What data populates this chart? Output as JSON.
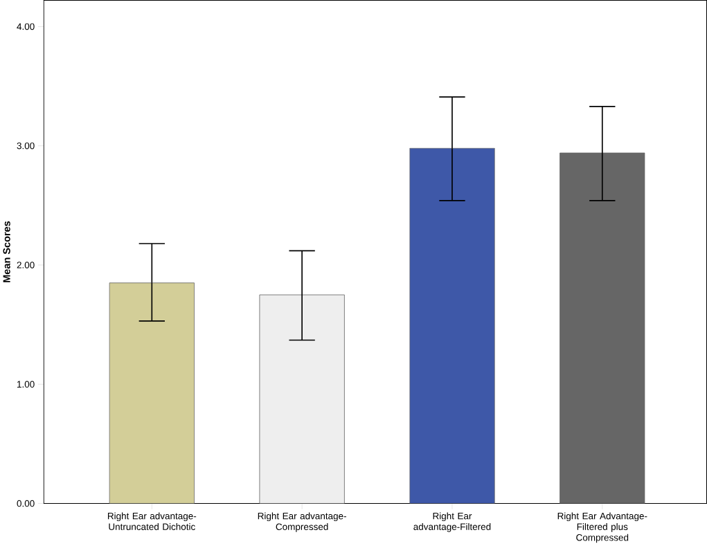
{
  "chart_data": {
    "type": "bar",
    "ylabel": "Mean Scores",
    "categories": [
      "Right Ear advantage-Untruncated Dichotic",
      "Right Ear advantage-Compressed",
      "Right Ear advantage-Filtered",
      "Right Ear Advantage-Filtered plus Compressed"
    ],
    "values": [
      1.85,
      1.75,
      2.98,
      2.94
    ],
    "errors": [
      [
        1.53,
        2.18
      ],
      [
        1.37,
        2.12
      ],
      [
        2.54,
        3.41
      ],
      [
        2.54,
        3.33
      ]
    ],
    "colors": [
      "#d3ce98",
      "#eeeeee",
      "#3e58a8",
      "#666666"
    ],
    "ylim": [
      0,
      4.22
    ],
    "yticks": [
      {
        "value": 0,
        "label": "0.00"
      },
      {
        "value": 1,
        "label": "1.00"
      },
      {
        "value": 2,
        "label": "2.00"
      },
      {
        "value": 3,
        "label": "3.00"
      },
      {
        "value": 4,
        "label": "4.00"
      }
    ],
    "grid": false
  }
}
